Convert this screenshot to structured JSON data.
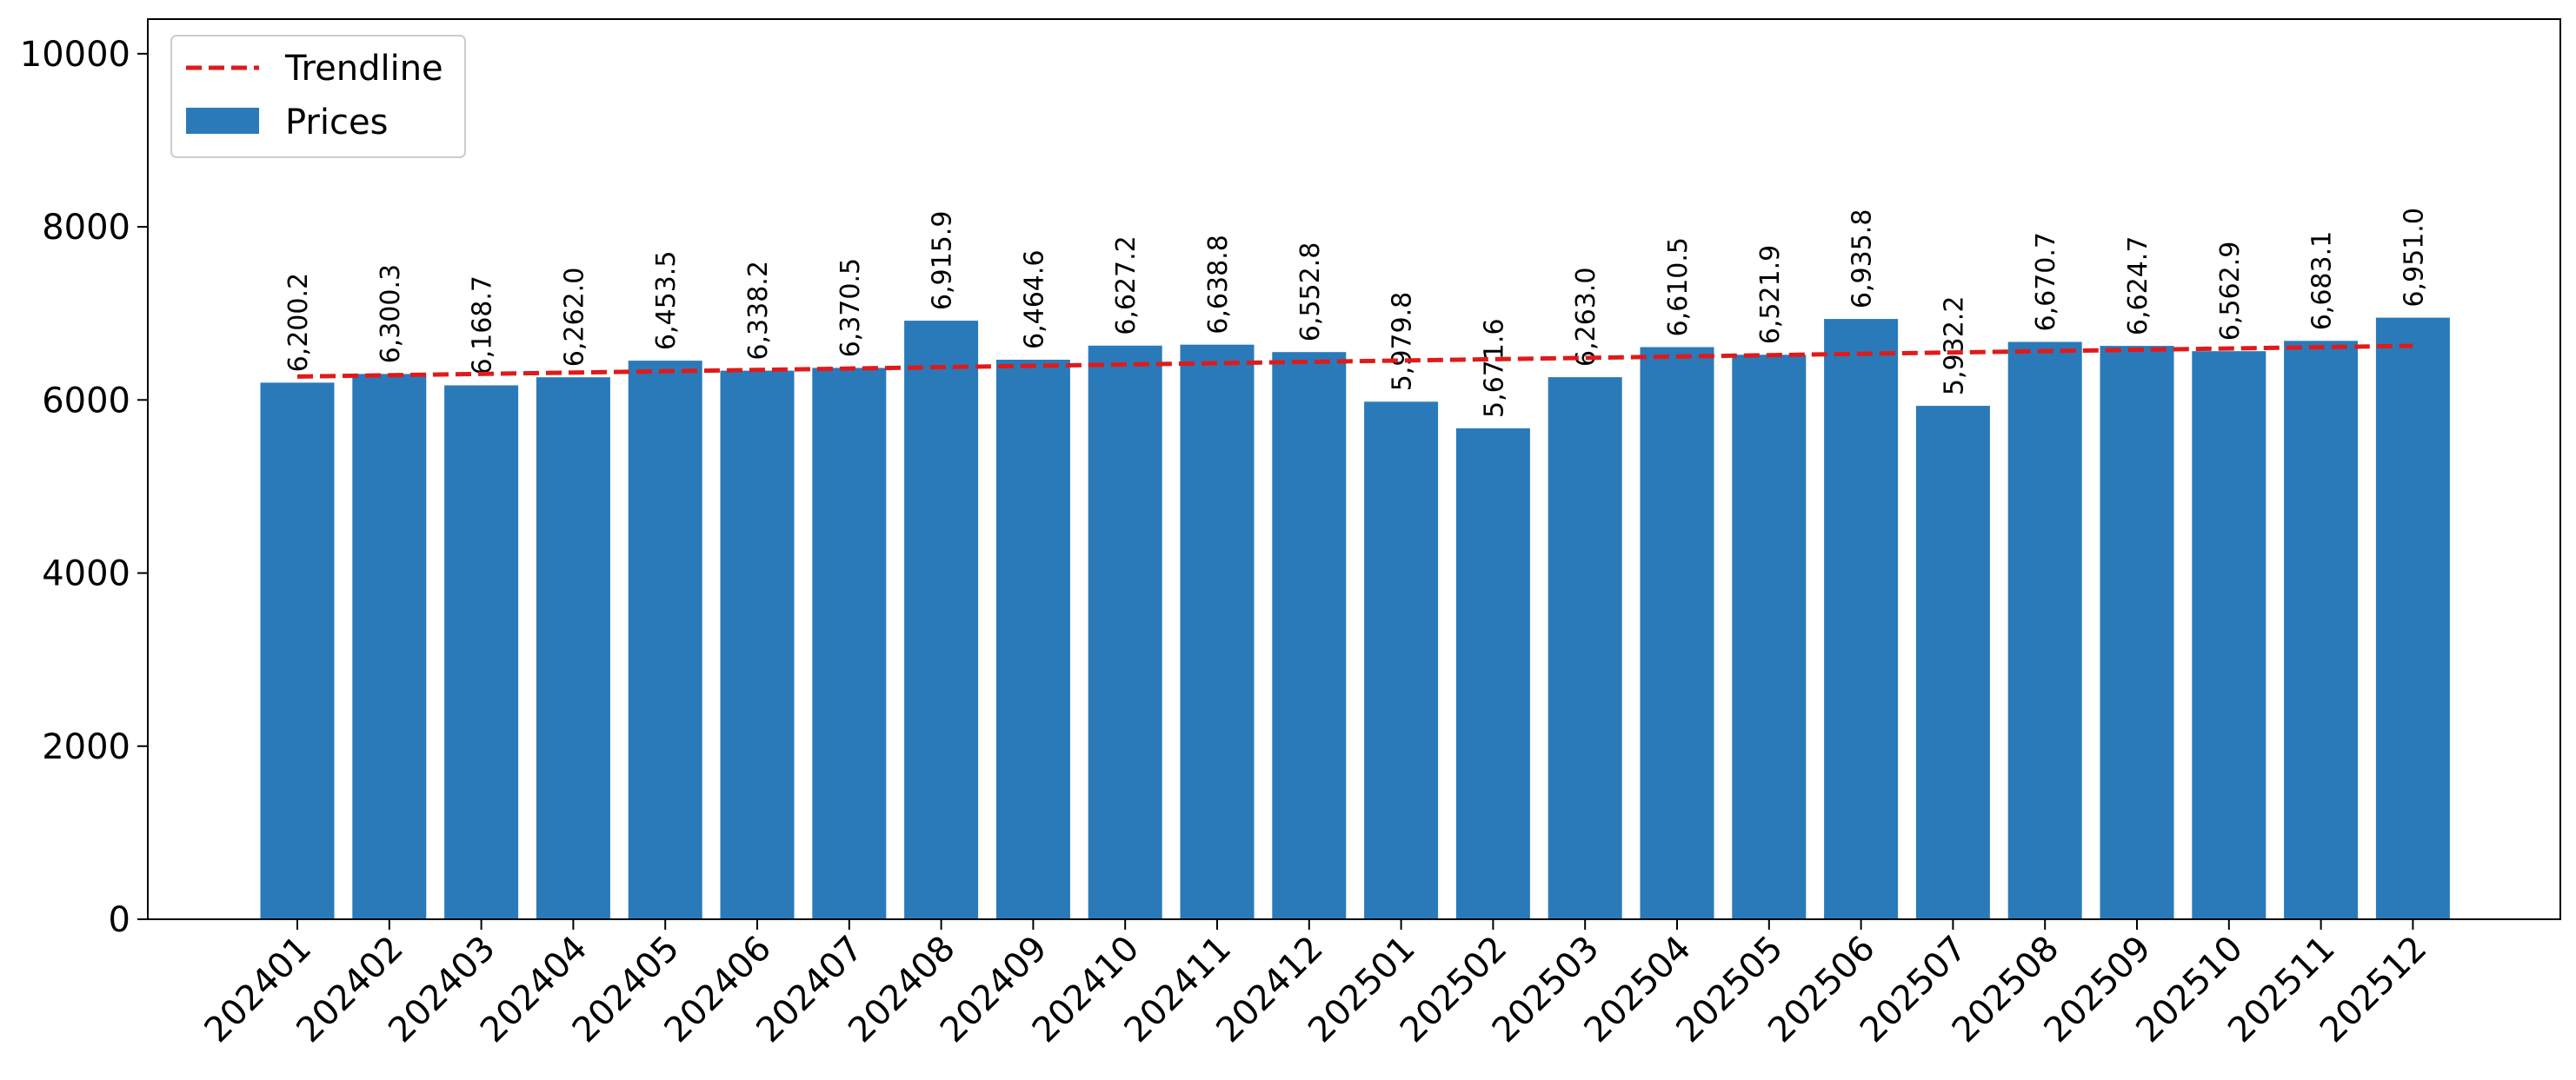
{
  "chart_data": {
    "type": "bar",
    "title": "",
    "xlabel": "",
    "ylabel": "",
    "categories": [
      "202401",
      "202402",
      "202403",
      "202404",
      "202405",
      "202406",
      "202407",
      "202408",
      "202409",
      "202410",
      "202411",
      "202412",
      "202501",
      "202502",
      "202503",
      "202504",
      "202505",
      "202506",
      "202507",
      "202508",
      "202509",
      "202510",
      "202511",
      "202512"
    ],
    "series": [
      {
        "name": "Prices",
        "color": "#2a7ab9",
        "values": [
          6200.2,
          6300.3,
          6168.7,
          6262.0,
          6453.5,
          6338.2,
          6370.5,
          6915.9,
          6464.6,
          6627.2,
          6638.8,
          6552.8,
          5979.8,
          5671.6,
          6263.0,
          6610.5,
          6521.9,
          6935.8,
          5932.2,
          6670.7,
          6624.7,
          6562.9,
          6683.1,
          6951.0
        ],
        "labels": [
          "6,200.2",
          "6,300.3",
          "6,168.7",
          "6,262.0",
          "6,453.5",
          "6,338.2",
          "6,370.5",
          "6,915.9",
          "6,464.6",
          "6,627.2",
          "6,638.8",
          "6,552.8",
          "5,979.8",
          "5,671.6",
          "6,263.0",
          "6,610.5",
          "6,521.9",
          "6,935.8",
          "5,932.2",
          "6,670.7",
          "6,624.7",
          "6,562.9",
          "6,683.1",
          "6,951.0"
        ]
      }
    ],
    "trendline": {
      "name": "Trendline",
      "color": "#e01a1a",
      "style": "dashed",
      "start": 6270,
      "end": 6625
    },
    "ylim": [
      0,
      10400
    ],
    "yticks": [
      0,
      2000,
      4000,
      6000,
      8000,
      10000
    ],
    "grid": false,
    "legend": "top-left"
  }
}
